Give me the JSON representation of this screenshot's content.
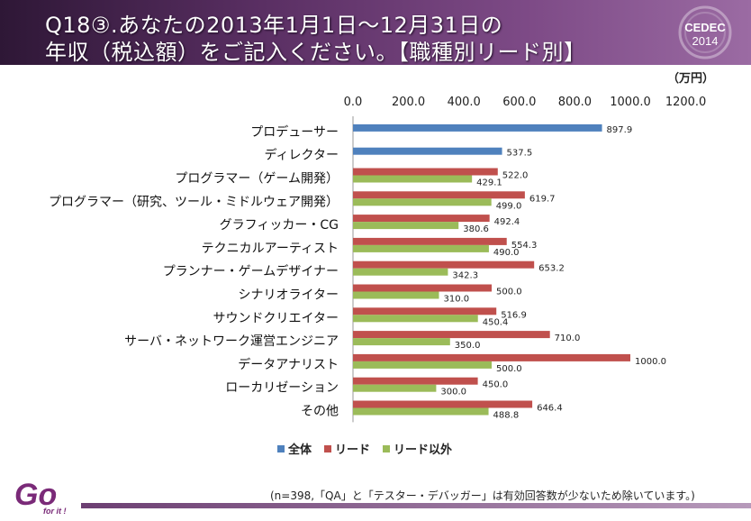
{
  "header": {
    "title_line1": "Q18③.あなたの2013年1月1日～12月31日の",
    "title_line2": "年収（税込額）をご記入ください。【職種別リード別】",
    "logo_text_top": "CEDEC",
    "logo_text_bottom": "2014"
  },
  "unit": "（万円）",
  "legend": {
    "items": [
      {
        "label": "全体",
        "color": "#4f81bd"
      },
      {
        "label": "リード",
        "color": "#c0504d"
      },
      {
        "label": "リード以外",
        "color": "#9bbb59"
      }
    ]
  },
  "footnote": "(n=398,「QA」と「テスター・デバッガー」は有効回答数が少ないため除いています。)",
  "footer_logo": {
    "main": "Go",
    "sub": "for it !"
  },
  "chart_data": {
    "type": "bar",
    "orientation": "horizontal",
    "xlim": [
      0,
      1200
    ],
    "ticks": [
      "0.0",
      "200.0",
      "400.0",
      "600.0",
      "800.0",
      "1000.0",
      "1200.0"
    ],
    "categories": [
      "プロデューサー",
      "ディレクター",
      "プログラマー（ゲーム開発）",
      "プログラマー（研究、ツール・ミドルウェア開発）",
      "グラフィッカー・CG",
      "テクニカルアーティスト",
      "プランナー・ゲームデザイナー",
      "シナリオライター",
      "サウンドクリエイター",
      "サーバ・ネットワーク運営エンジニア",
      "データアナリスト",
      "ローカリゼーション",
      "その他"
    ],
    "series": [
      {
        "name": "全体",
        "color": "#4f81bd",
        "values": [
          897.9,
          537.5,
          null,
          null,
          null,
          null,
          null,
          null,
          null,
          null,
          null,
          null,
          null
        ],
        "labels": [
          "897.9",
          "537.5",
          "",
          "",
          "",
          "",
          "",
          "",
          "",
          "",
          "",
          "",
          ""
        ]
      },
      {
        "name": "リード",
        "color": "#c0504d",
        "values": [
          null,
          null,
          522.0,
          619.7,
          492.4,
          554.3,
          653.2,
          500.0,
          516.9,
          710.0,
          1000.0,
          450.0,
          646.4
        ],
        "labels": [
          "",
          "",
          "522.0",
          "619.7",
          "492.4",
          "554.3",
          "653.2",
          "500.0",
          "516.9",
          "710.0",
          "1000.0",
          "450.0",
          "646.4"
        ]
      },
      {
        "name": "リード以外",
        "color": "#9bbb59",
        "values": [
          null,
          null,
          429.1,
          499.0,
          380.6,
          490.0,
          342.3,
          310.0,
          450.4,
          350.0,
          500.0,
          300.0,
          488.8
        ],
        "labels": [
          "",
          "",
          "429.1",
          "499.0",
          "380.6",
          "490.0",
          "342.3",
          "310.0",
          "450.4",
          "350.0",
          "500.0",
          "300.0",
          "488.8"
        ]
      }
    ],
    "grid": false,
    "legend_position": "bottom"
  }
}
